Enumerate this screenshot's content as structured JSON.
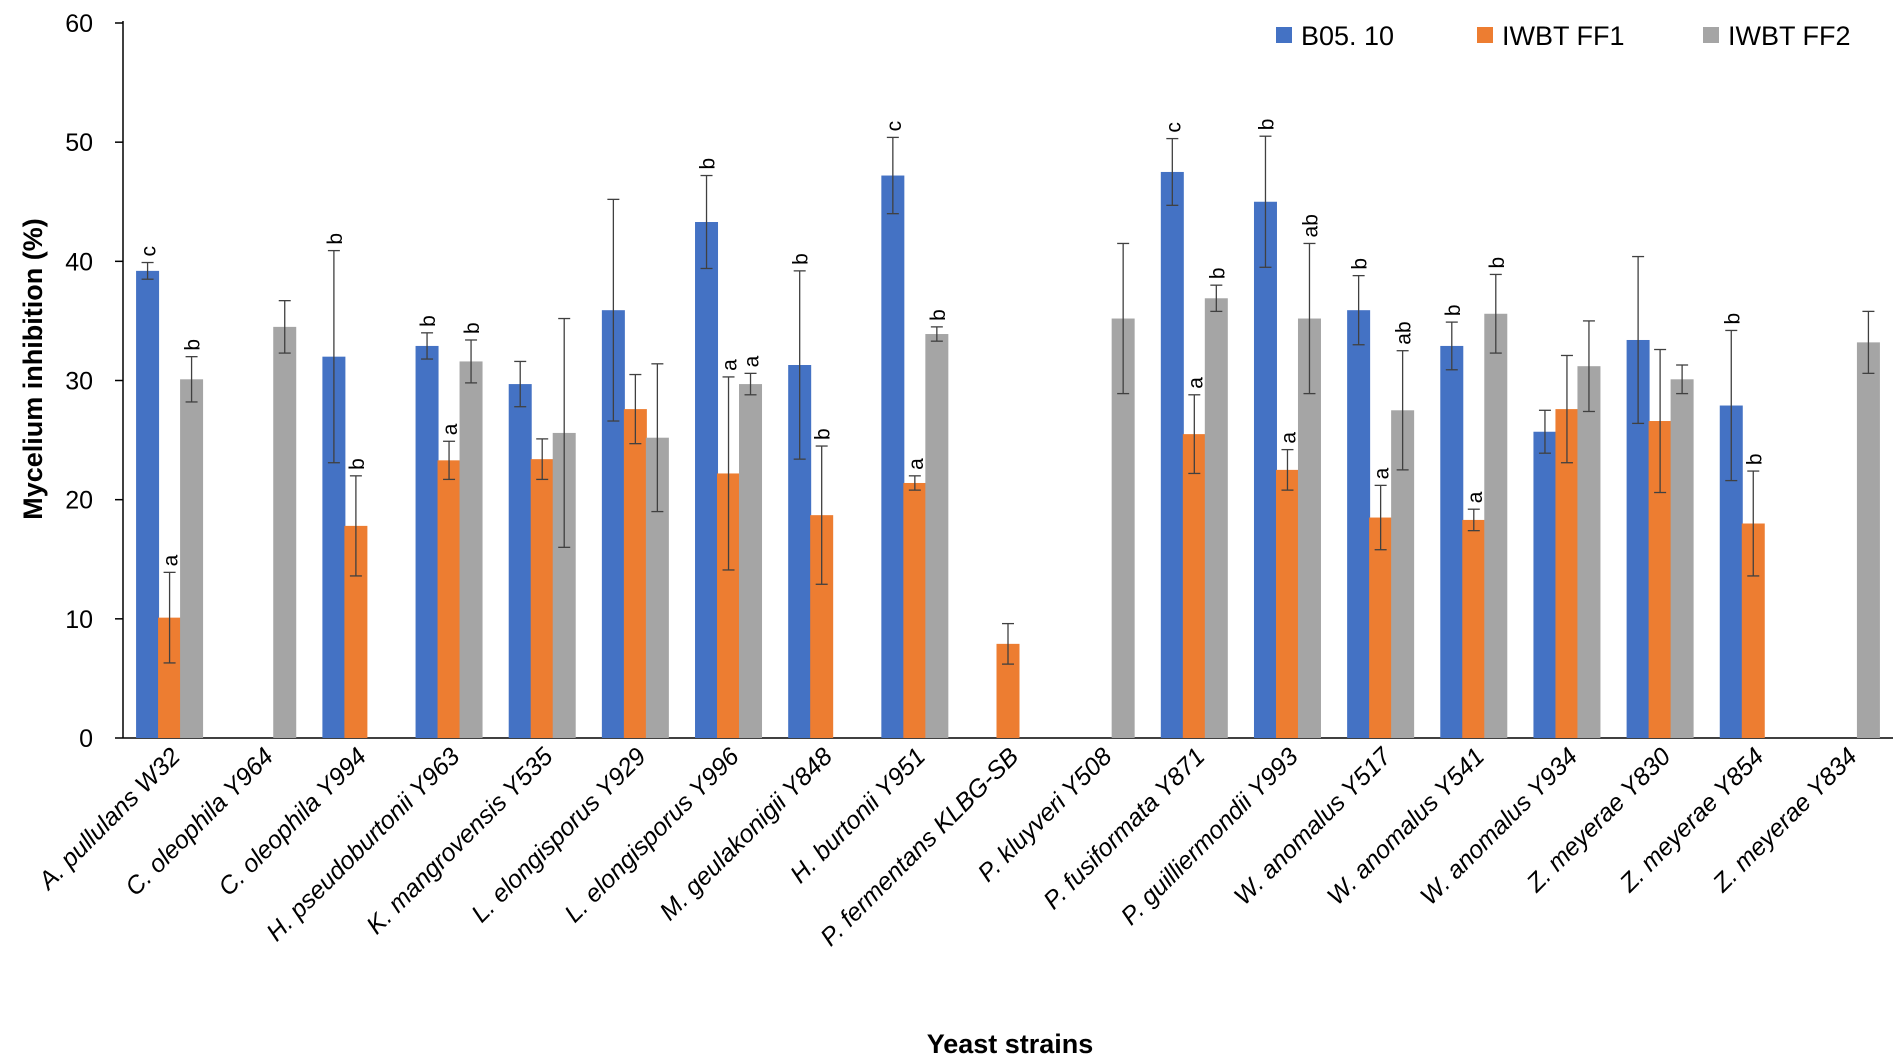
{
  "chart_data": {
    "type": "bar",
    "xlabel": "Yeast strains",
    "ylabel": "Mycelium inhibition (%)",
    "ylim": [
      0,
      60
    ],
    "yticks": [
      0,
      10,
      20,
      30,
      40,
      50,
      60
    ],
    "grid": false,
    "legend_position": "top-right",
    "categories": [
      "A. pullulans W32",
      "C. oleophila Y964",
      "C. oleophila Y994",
      "H. pseudoburtonii  Y963",
      "K. mangrovensis  Y535",
      "L. elongisporus Y929",
      "L. elongisporus Y996",
      "M. geulakonigii Y848",
      "H. burtonii Y951",
      "P. fermentans KLBG-SB",
      "P. kluyveri Y508",
      "P. fusiformata Y871",
      "P. guilliermondii Y993",
      "W. anomalus Y517",
      "W. anomalus Y541",
      "W. anomalus Y934",
      "Z. meyerae Y830",
      "Z. meyerae Y854",
      "Z. meyerae Y834"
    ],
    "series": [
      {
        "name": "B05. 10",
        "color": "#4472C4",
        "values": [
          39.2,
          null,
          32.0,
          32.9,
          29.7,
          35.9,
          43.3,
          31.3,
          47.2,
          null,
          null,
          47.5,
          45.0,
          35.9,
          32.9,
          25.7,
          33.4,
          27.9,
          null
        ],
        "errors": [
          0.7,
          null,
          8.9,
          1.1,
          1.9,
          9.3,
          3.9,
          7.9,
          3.2,
          null,
          null,
          2.8,
          5.5,
          2.9,
          2.0,
          1.8,
          7.0,
          6.3,
          null
        ],
        "labels": [
          "c",
          "",
          "b",
          "b",
          "",
          "",
          "b",
          "b",
          "c",
          "",
          "",
          "c",
          "b",
          "b",
          "b",
          "",
          "",
          "b",
          ""
        ]
      },
      {
        "name": "IWBT FF1",
        "color": "#ED7D31",
        "values": [
          10.1,
          null,
          17.8,
          23.3,
          23.4,
          27.6,
          22.2,
          18.7,
          21.4,
          7.9,
          null,
          25.5,
          22.5,
          18.5,
          18.3,
          27.6,
          26.6,
          18.0,
          null
        ],
        "errors": [
          3.8,
          null,
          4.2,
          1.6,
          1.7,
          2.9,
          8.1,
          5.8,
          0.6,
          1.7,
          null,
          3.3,
          1.7,
          2.7,
          0.9,
          4.5,
          6.0,
          4.4,
          null
        ],
        "labels": [
          "a",
          "",
          "b",
          "a",
          "",
          "",
          "a",
          "b",
          "a",
          "",
          "",
          "a",
          "a",
          "a",
          "a",
          "",
          "",
          "b",
          ""
        ]
      },
      {
        "name": "IWBT FF2",
        "color": "#A5A5A5",
        "values": [
          30.1,
          34.5,
          null,
          31.6,
          25.6,
          25.2,
          29.7,
          null,
          33.9,
          null,
          35.2,
          36.9,
          35.2,
          27.5,
          35.6,
          31.2,
          30.1,
          null,
          33.2
        ],
        "errors": [
          1.9,
          2.2,
          null,
          1.8,
          9.6,
          6.2,
          0.9,
          null,
          0.6,
          null,
          6.3,
          1.1,
          6.3,
          5.0,
          3.3,
          3.8,
          1.2,
          null,
          2.6
        ],
        "labels": [
          "b",
          "",
          "",
          "b",
          "",
          "",
          "a",
          "",
          "b",
          "",
          "",
          "b",
          "ab",
          "ab",
          "b",
          "",
          "",
          "",
          ""
        ]
      }
    ]
  }
}
